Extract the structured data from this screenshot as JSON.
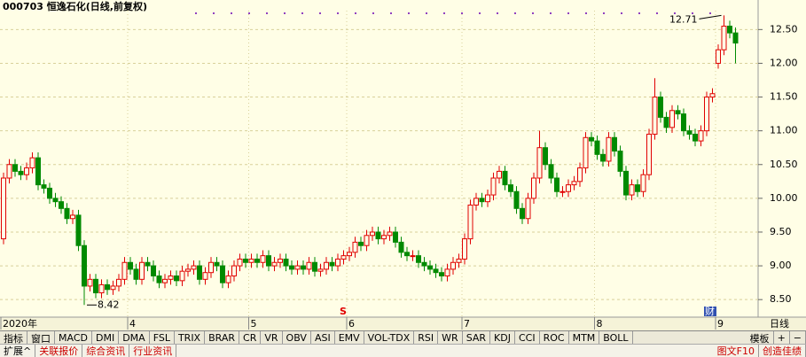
{
  "chart_data": {
    "type": "candlestick",
    "title": "000703 恒逸石化(日线,前复权)",
    "ylim": [
      8.24,
      12.78
    ],
    "yticks": [
      {
        "value": 8.5,
        "label": "8.50"
      },
      {
        "value": 9,
        "label": "9.00"
      },
      {
        "value": 9.5,
        "label": "9.50"
      },
      {
        "value": 10,
        "label": "10.00"
      },
      {
        "value": 10.5,
        "label": "10.50"
      },
      {
        "value": 11,
        "label": "11.00"
      },
      {
        "value": 11.5,
        "label": "11.50"
      },
      {
        "value": 12,
        "label": "12.00"
      },
      {
        "value": 12.5,
        "label": "12.50"
      }
    ],
    "xticks": [
      {
        "value": 0,
        "label": "2020年"
      },
      {
        "value": 22,
        "label": "4"
      },
      {
        "value": 43,
        "label": "5"
      },
      {
        "value": 60,
        "label": "6"
      },
      {
        "value": 80,
        "label": "7"
      },
      {
        "value": 103,
        "label": "8"
      },
      {
        "value": 124,
        "label": "9"
      }
    ],
    "up_color": "#e00000",
    "down_color": "#008a00",
    "grid": true,
    "open": [
      9.4,
      10.3,
      10.5,
      10.4,
      10.35,
      10.45,
      10.6,
      10.2,
      10.15,
      10.0,
      9.95,
      9.85,
      9.7,
      9.75,
      9.3,
      8.7,
      8.8,
      8.6,
      8.72,
      8.65,
      8.7,
      8.8,
      9.05,
      8.95,
      8.8,
      9.05,
      9.0,
      8.85,
      8.75,
      8.8,
      8.85,
      8.78,
      8.92,
      8.95,
      9.0,
      8.8,
      8.9,
      9.05,
      9.0,
      8.75,
      8.85,
      9.0,
      9.1,
      9.05,
      9.1,
      9.05,
      9.15,
      9.0,
      9.05,
      9.1,
      9.0,
      8.95,
      9.0,
      8.95,
      9.05,
      8.92,
      8.95,
      9.05,
      9.0,
      9.1,
      9.15,
      9.2,
      9.35,
      9.3,
      9.45,
      9.5,
      9.4,
      9.45,
      9.5,
      9.35,
      9.2,
      9.15,
      9.15,
      9.05,
      9.0,
      8.95,
      8.9,
      8.85,
      8.95,
      9.05,
      9.1,
      9.4,
      9.9,
      10.0,
      9.95,
      10.05,
      10.3,
      10.4,
      10.2,
      10.1,
      9.85,
      9.7,
      10.0,
      10.3,
      10.75,
      10.5,
      10.3,
      10.1,
      10.1,
      10.2,
      10.25,
      10.45,
      10.9,
      10.85,
      10.65,
      10.55,
      10.9,
      10.7,
      10.4,
      10.05,
      10.2,
      10.1,
      10.35,
      10.95,
      11.5,
      11.2,
      11.05,
      11.3,
      11.25,
      11.0,
      10.95,
      10.85,
      11.0,
      11.5,
      12.0,
      12.2,
      12.55,
      12.45
    ],
    "high": [
      10.38,
      10.58,
      10.58,
      10.48,
      10.53,
      10.68,
      10.68,
      10.28,
      10.23,
      10.08,
      10.03,
      9.93,
      9.83,
      9.83,
      9.38,
      8.88,
      8.88,
      8.8,
      8.8,
      8.78,
      8.88,
      9.13,
      9.13,
      9.03,
      9.13,
      9.13,
      9.08,
      8.93,
      8.88,
      8.93,
      8.93,
      9.0,
      9.03,
      9.08,
      9.08,
      8.98,
      9.13,
      9.13,
      9.08,
      8.93,
      9.08,
      9.18,
      9.18,
      9.18,
      9.18,
      9.23,
      9.23,
      9.13,
      9.18,
      9.18,
      9.08,
      9.08,
      9.08,
      9.13,
      9.13,
      9.03,
      9.13,
      9.13,
      9.18,
      9.23,
      9.28,
      9.43,
      9.43,
      9.53,
      9.58,
      9.58,
      9.53,
      9.58,
      9.58,
      9.43,
      9.28,
      9.23,
      9.23,
      9.13,
      9.08,
      9.03,
      8.98,
      9.03,
      9.13,
      9.18,
      9.48,
      9.98,
      10.08,
      10.08,
      10.13,
      10.38,
      10.48,
      10.48,
      10.28,
      10.18,
      9.93,
      10.08,
      10.38,
      11.0,
      10.83,
      10.58,
      10.38,
      10.18,
      10.28,
      10.33,
      10.53,
      10.98,
      10.98,
      10.93,
      10.73,
      10.98,
      10.98,
      10.78,
      10.48,
      10.28,
      10.28,
      10.43,
      11.03,
      11.78,
      11.58,
      11.28,
      11.38,
      11.38,
      11.33,
      11.08,
      11.03,
      11.08,
      11.58,
      11.63,
      12.28,
      12.71,
      12.63,
      12.53
    ],
    "low": [
      9.32,
      10.22,
      10.32,
      10.27,
      10.27,
      10.37,
      10.12,
      10.07,
      9.92,
      9.87,
      9.77,
      9.62,
      9.62,
      9.22,
      8.42,
      8.62,
      8.52,
      8.52,
      8.57,
      8.57,
      8.62,
      8.72,
      8.87,
      8.72,
      8.72,
      8.92,
      8.77,
      8.67,
      8.67,
      8.72,
      8.7,
      8.7,
      8.84,
      8.87,
      8.72,
      8.72,
      8.82,
      8.92,
      8.67,
      8.67,
      8.77,
      8.92,
      8.97,
      8.97,
      8.97,
      8.97,
      8.92,
      8.92,
      8.97,
      8.92,
      8.87,
      8.87,
      8.87,
      8.87,
      8.84,
      8.84,
      8.87,
      8.92,
      8.92,
      9.02,
      9.07,
      9.12,
      9.22,
      9.22,
      9.37,
      9.32,
      9.32,
      9.37,
      9.27,
      9.12,
      9.07,
      9.07,
      8.97,
      8.92,
      8.87,
      8.82,
      8.77,
      8.77,
      8.87,
      8.97,
      9.02,
      9.32,
      9.82,
      9.87,
      9.87,
      9.97,
      10.22,
      10.12,
      10.02,
      9.77,
      9.62,
      9.62,
      9.92,
      10.22,
      10.42,
      10.22,
      10.02,
      10.02,
      10.02,
      10.12,
      10.17,
      10.37,
      10.77,
      10.57,
      10.47,
      10.47,
      10.62,
      10.32,
      9.97,
      9.97,
      10.02,
      10.02,
      10.27,
      10.87,
      11.12,
      10.97,
      10.97,
      11.17,
      10.92,
      10.87,
      10.77,
      10.77,
      10.92,
      11.42,
      11.92,
      12.12,
      12.37,
      12.0
    ],
    "close": [
      10.3,
      10.5,
      10.4,
      10.35,
      10.45,
      10.6,
      10.2,
      10.15,
      10.0,
      9.95,
      9.85,
      9.7,
      9.75,
      9.3,
      8.7,
      8.8,
      8.6,
      8.72,
      8.65,
      8.7,
      8.8,
      9.05,
      8.95,
      8.8,
      9.05,
      9.0,
      8.85,
      8.75,
      8.8,
      8.85,
      8.78,
      8.92,
      8.95,
      9.0,
      8.8,
      8.9,
      9.05,
      9.0,
      8.75,
      8.85,
      9.0,
      9.1,
      9.05,
      9.1,
      9.05,
      9.15,
      9.0,
      9.05,
      9.1,
      9.0,
      8.95,
      9.0,
      8.95,
      9.05,
      8.92,
      8.95,
      9.05,
      9.0,
      9.1,
      9.15,
      9.2,
      9.35,
      9.3,
      9.45,
      9.5,
      9.4,
      9.45,
      9.5,
      9.35,
      9.2,
      9.15,
      9.15,
      9.05,
      9.0,
      8.95,
      8.9,
      8.85,
      8.95,
      9.05,
      9.1,
      9.4,
      9.9,
      10.0,
      9.95,
      10.05,
      10.3,
      10.4,
      10.2,
      10.1,
      9.85,
      9.7,
      10.0,
      10.3,
      10.75,
      10.5,
      10.3,
      10.1,
      10.1,
      10.2,
      10.25,
      10.45,
      10.9,
      10.85,
      10.65,
      10.55,
      10.9,
      10.7,
      10.4,
      10.05,
      10.2,
      10.1,
      10.35,
      10.95,
      11.5,
      11.2,
      11.05,
      11.3,
      11.25,
      11.0,
      10.95,
      10.85,
      11.0,
      11.5,
      11.55,
      12.2,
      12.55,
      12.45,
      12.3
    ],
    "markers": {
      "signal": "S",
      "finance": "财"
    },
    "period_label": "日线"
  },
  "toolbar": {
    "tabs": [
      "指标",
      "窗口",
      "MACD",
      "DMI",
      "DMA",
      "FSL",
      "TRIX",
      "BRAR",
      "CR",
      "VR",
      "OBV",
      "ASI",
      "EMV",
      "VOL-TDX",
      "RSI",
      "WR",
      "SAR",
      "KDJ",
      "CCI",
      "ROC",
      "MTM",
      "BOLL"
    ],
    "right": [
      "模板",
      "+",
      "−"
    ]
  },
  "bottom_bar": {
    "tabs": [
      "扩展^",
      "关联报价",
      "综合资讯",
      "行业资讯"
    ],
    "right": [
      "图文F10",
      "创造佳绩"
    ]
  }
}
